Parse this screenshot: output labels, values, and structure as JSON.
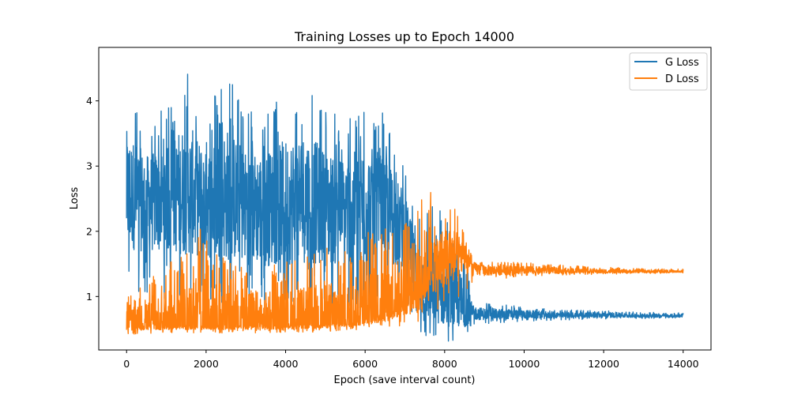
{
  "chart_data": {
    "type": "line",
    "title": "Training Losses up to Epoch 14000",
    "xlabel": "Epoch (save interval count)",
    "ylabel": "Loss",
    "xlim": [
      -700,
      14700
    ],
    "ylim": [
      0.18,
      4.82
    ],
    "xticks": [
      0,
      2000,
      4000,
      6000,
      8000,
      10000,
      12000,
      14000
    ],
    "yticks": [
      1,
      2,
      3,
      4
    ],
    "xtick_labels": [
      "0",
      "2000",
      "4000",
      "6000",
      "8000",
      "10000",
      "12000",
      "14000"
    ],
    "ytick_labels": [
      "1",
      "2",
      "3",
      "4"
    ],
    "grid": false,
    "legend_position": "top-right",
    "series": [
      {
        "name": "G Loss",
        "color": "#1f77b4",
        "x": [
          0,
          500,
          1000,
          1500,
          2000,
          2500,
          3000,
          3500,
          4000,
          4500,
          5000,
          5500,
          6000,
          6500,
          7000,
          7300,
          7600,
          7900,
          8200,
          8500,
          8700,
          9000,
          10000,
          11000,
          12000,
          13000,
          14000
        ],
        "upper": [
          4.4,
          3.7,
          3.9,
          4.65,
          3.8,
          4.55,
          3.9,
          3.8,
          4.2,
          4.45,
          3.9,
          3.7,
          4.1,
          3.8,
          3.0,
          2.2,
          2.4,
          2.5,
          2.1,
          1.9,
          0.95,
          0.9,
          0.85,
          0.8,
          0.78,
          0.76,
          0.75
        ],
        "lower": [
          1.1,
          1.0,
          0.95,
          0.9,
          0.85,
          0.75,
          0.7,
          0.65,
          0.7,
          0.75,
          0.7,
          0.7,
          0.75,
          0.8,
          0.8,
          0.4,
          0.35,
          0.3,
          0.3,
          0.35,
          0.55,
          0.58,
          0.62,
          0.64,
          0.65,
          0.66,
          0.67
        ],
        "mean": [
          2.5,
          2.5,
          2.5,
          2.55,
          2.5,
          2.5,
          2.45,
          2.45,
          2.45,
          2.45,
          2.4,
          2.4,
          2.4,
          2.35,
          2.1,
          1.2,
          1.0,
          0.9,
          0.8,
          0.75,
          0.75,
          0.72,
          0.72,
          0.71,
          0.71,
          0.7,
          0.7
        ]
      },
      {
        "name": "D Loss",
        "color": "#ff7f0e",
        "x": [
          0,
          500,
          1000,
          1500,
          2000,
          2500,
          3000,
          3500,
          4000,
          4500,
          5000,
          5500,
          6000,
          6500,
          7000,
          7300,
          7600,
          7900,
          8200,
          8500,
          8700,
          9000,
          10000,
          11000,
          12000,
          13000,
          14000
        ],
        "upper": [
          1.0,
          1.2,
          1.5,
          1.65,
          2.45,
          1.5,
          1.6,
          1.5,
          1.55,
          1.6,
          1.8,
          1.7,
          2.0,
          2.15,
          2.2,
          2.65,
          2.7,
          2.5,
          2.45,
          1.95,
          1.6,
          1.55,
          1.52,
          1.48,
          1.45,
          1.43,
          1.42
        ],
        "lower": [
          0.42,
          0.43,
          0.44,
          0.44,
          0.44,
          0.44,
          0.44,
          0.44,
          0.45,
          0.45,
          0.46,
          0.47,
          0.48,
          0.5,
          0.55,
          0.6,
          0.7,
          0.8,
          0.9,
          1.0,
          1.2,
          1.25,
          1.3,
          1.33,
          1.34,
          1.35,
          1.36
        ],
        "mean": [
          0.55,
          0.55,
          0.55,
          0.55,
          0.55,
          0.55,
          0.55,
          0.55,
          0.56,
          0.57,
          0.58,
          0.6,
          0.65,
          0.75,
          0.9,
          1.1,
          1.35,
          1.5,
          1.6,
          1.7,
          1.45,
          1.4,
          1.4,
          1.39,
          1.38,
          1.38,
          1.38
        ]
      }
    ]
  }
}
